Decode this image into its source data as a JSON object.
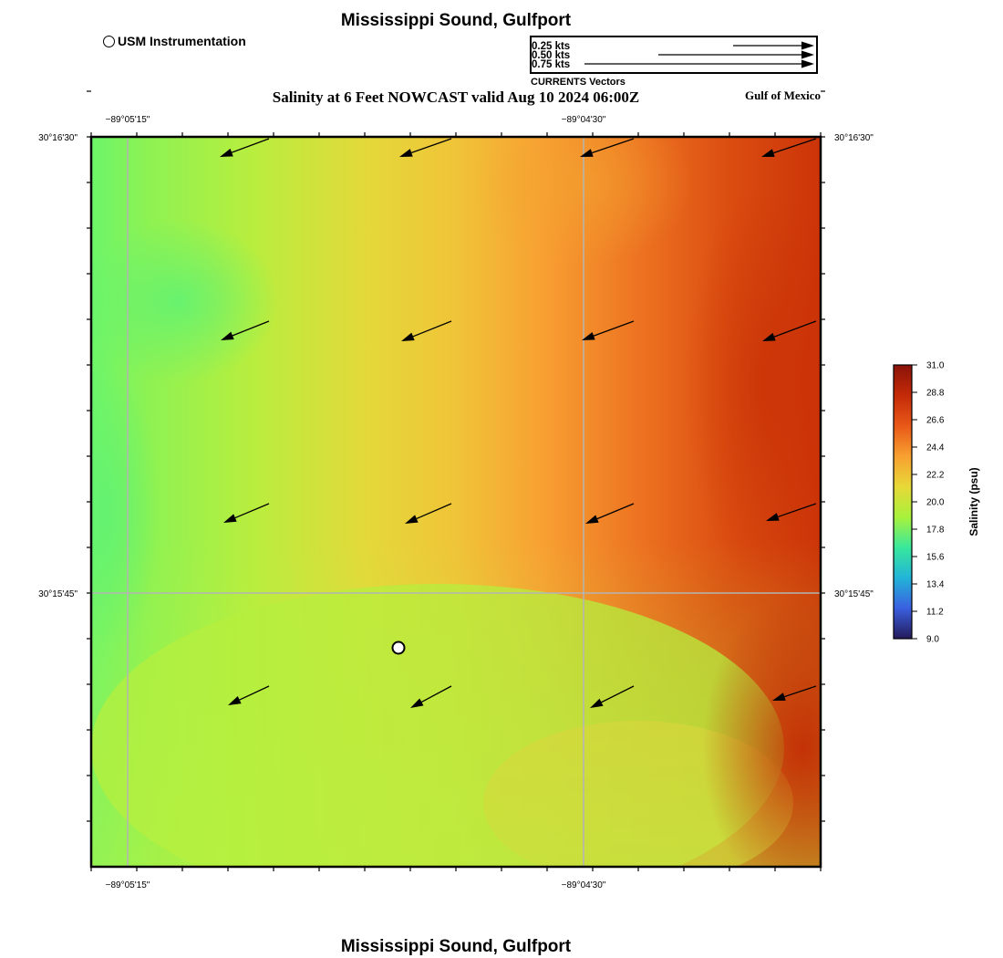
{
  "header": {
    "title": "Mississippi Sound, Gulfport",
    "subtitle": "Salinity at 6 Feet NOWCAST valid Aug 10 2024 06:00Z",
    "region": "Gulf of Mexico",
    "station_legend": "USM Instrumentation"
  },
  "footer": {
    "title": "Mississippi Sound, Gulfport"
  },
  "vector_legend": {
    "caption": "CURRENTS Vectors",
    "entries": [
      {
        "label": "0.25 kts",
        "speed_kts": 0.25
      },
      {
        "label": "0.50 kts",
        "speed_kts": 0.5
      },
      {
        "label": "0.75 kts",
        "speed_kts": 0.75
      }
    ]
  },
  "map": {
    "lon_ticks": [
      "−89°05'15\"",
      "−89°04'30\""
    ],
    "lat_ticks": [
      "30°16'30\"",
      "30°15'45\""
    ],
    "station": {
      "name": "USM Instrumentation"
    }
  },
  "colorbar": {
    "label": "Salinity (psu)",
    "ticks": [
      "31.0",
      "28.8",
      "26.6",
      "24.4",
      "22.2",
      "20.0",
      "17.8",
      "15.6",
      "13.4",
      "11.2",
      "9.0"
    ],
    "min": 9.0,
    "max": 31.0,
    "colors": [
      "#241a5a",
      "#3a5fe0",
      "#22b4d8",
      "#38e89c",
      "#a8f23c",
      "#e8d838",
      "#f8a030",
      "#e85818",
      "#c42a08",
      "#8a1208"
    ]
  },
  "colors": {
    "grid": "#b4b4b4",
    "frame": "#000000",
    "low_salinity": "#6cf56a",
    "mid_salinity": "#e6d63a",
    "high_salinity": "#cc2e06"
  }
}
